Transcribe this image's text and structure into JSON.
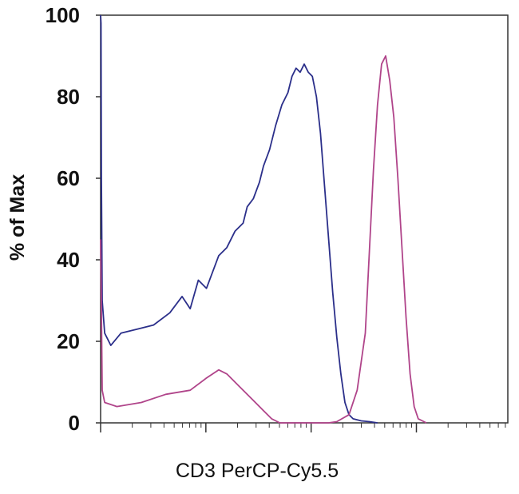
{
  "chart_data": {
    "type": "line",
    "title": "",
    "xlabel": "CD3 PerCP-Cy5.5",
    "ylabel": "% of Max",
    "x_scale": "log",
    "x_tick_labels": [],
    "ylim": [
      0,
      100
    ],
    "yticks": [
      "0",
      "20",
      "40",
      "60",
      "80",
      "100"
    ],
    "grid": false,
    "legend": "none",
    "series": [
      {
        "color": "#2b2f8a",
        "points": [
          [
            0.0,
            100
          ],
          [
            0.001,
            98
          ],
          [
            0.002,
            60
          ],
          [
            0.004,
            30
          ],
          [
            0.01,
            22
          ],
          [
            0.025,
            19
          ],
          [
            0.05,
            22
          ],
          [
            0.09,
            23
          ],
          [
            0.13,
            24
          ],
          [
            0.17,
            27
          ],
          [
            0.2,
            31
          ],
          [
            0.22,
            28
          ],
          [
            0.24,
            35
          ],
          [
            0.26,
            33
          ],
          [
            0.29,
            41
          ],
          [
            0.31,
            43
          ],
          [
            0.33,
            47
          ],
          [
            0.35,
            49
          ],
          [
            0.36,
            53
          ],
          [
            0.375,
            55
          ],
          [
            0.39,
            59
          ],
          [
            0.4,
            63
          ],
          [
            0.415,
            67
          ],
          [
            0.43,
            73
          ],
          [
            0.445,
            78
          ],
          [
            0.46,
            81
          ],
          [
            0.47,
            85
          ],
          [
            0.48,
            87
          ],
          [
            0.49,
            86
          ],
          [
            0.5,
            88
          ],
          [
            0.51,
            86
          ],
          [
            0.52,
            85
          ],
          [
            0.53,
            80
          ],
          [
            0.54,
            71
          ],
          [
            0.55,
            58
          ],
          [
            0.56,
            45
          ],
          [
            0.57,
            32
          ],
          [
            0.58,
            21
          ],
          [
            0.59,
            12
          ],
          [
            0.6,
            5
          ],
          [
            0.61,
            2
          ],
          [
            0.62,
            1
          ],
          [
            0.64,
            0.5
          ],
          [
            0.66,
            0.3
          ],
          [
            0.68,
            0
          ]
        ]
      },
      {
        "color": "#b0448a",
        "points": [
          [
            0.0,
            45
          ],
          [
            0.002,
            28
          ],
          [
            0.004,
            8
          ],
          [
            0.01,
            5
          ],
          [
            0.04,
            4
          ],
          [
            0.1,
            5
          ],
          [
            0.16,
            7
          ],
          [
            0.22,
            8
          ],
          [
            0.26,
            11
          ],
          [
            0.29,
            13
          ],
          [
            0.31,
            12
          ],
          [
            0.34,
            9
          ],
          [
            0.37,
            6
          ],
          [
            0.4,
            3
          ],
          [
            0.42,
            1
          ],
          [
            0.44,
            0
          ],
          [
            0.56,
            0
          ],
          [
            0.58,
            0.3
          ],
          [
            0.61,
            2
          ],
          [
            0.63,
            8
          ],
          [
            0.65,
            22
          ],
          [
            0.66,
            42
          ],
          [
            0.67,
            62
          ],
          [
            0.68,
            78
          ],
          [
            0.69,
            88
          ],
          [
            0.7,
            90
          ],
          [
            0.71,
            84
          ],
          [
            0.72,
            75
          ],
          [
            0.73,
            60
          ],
          [
            0.74,
            43
          ],
          [
            0.75,
            26
          ],
          [
            0.76,
            12
          ],
          [
            0.77,
            4
          ],
          [
            0.78,
            1
          ],
          [
            0.8,
            0
          ]
        ]
      }
    ]
  }
}
